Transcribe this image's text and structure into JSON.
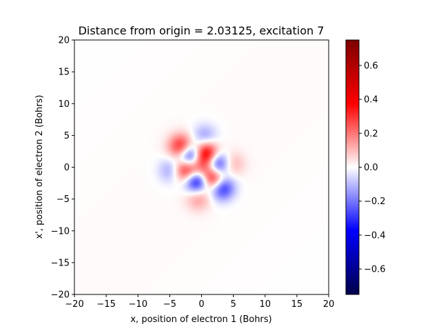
{
  "chart_data": {
    "type": "heatmap",
    "title": "Distance from origin = 2.03125, excitation 7",
    "xlabel": "x, position of electron 1 (Bohrs)",
    "ylabel": "x', position of electron 2 (Bohrs)",
    "xlim": [
      -20,
      20
    ],
    "ylim": [
      -20,
      20
    ],
    "xticks": [
      -20,
      -15,
      -10,
      -5,
      0,
      5,
      10,
      15,
      20
    ],
    "yticks": [
      -20,
      -15,
      -10,
      -5,
      0,
      5,
      10,
      15,
      20
    ],
    "xtick_labels": [
      "−20",
      "−15",
      "−10",
      "−5",
      "0",
      "5",
      "10",
      "15",
      "20"
    ],
    "ytick_labels": [
      "−20",
      "−15",
      "−10",
      "−5",
      "0",
      "5",
      "10",
      "15",
      "20"
    ],
    "colormap": "seismic",
    "colorbar": {
      "range": [
        -0.75,
        0.75
      ],
      "ticks": [
        -0.6,
        -0.4,
        -0.2,
        0.0,
        0.2,
        0.4,
        0.6
      ],
      "tick_labels": [
        "−0.6",
        "−0.4",
        "−0.2",
        "0.0",
        "0.2",
        "0.4",
        "0.6"
      ]
    },
    "features": [
      {
        "x": -3.2,
        "y": 3.2,
        "value": 0.35
      },
      {
        "x": 3.2,
        "y": -3.2,
        "value": -0.35
      },
      {
        "x": 0.5,
        "y": 4.8,
        "value": -0.15
      },
      {
        "x": -4.8,
        "y": -0.5,
        "value": -0.15
      },
      {
        "x": 4.8,
        "y": 0.5,
        "value": 0.12
      },
      {
        "x": -0.5,
        "y": -4.8,
        "value": 0.15
      },
      {
        "x": -1.8,
        "y": 1.7,
        "value": -0.45
      },
      {
        "x": 1.8,
        "y": -1.7,
        "value": 0.45
      },
      {
        "x": 0.7,
        "y": 2.1,
        "value": 0.45
      },
      {
        "x": -0.7,
        "y": -2.1,
        "value": -0.45
      },
      {
        "x": -2.4,
        "y": -0.4,
        "value": 0.4
      },
      {
        "x": 2.4,
        "y": 0.4,
        "value": -0.4
      },
      {
        "x": 0.0,
        "y": 0.0,
        "value": 0.2
      }
    ]
  }
}
